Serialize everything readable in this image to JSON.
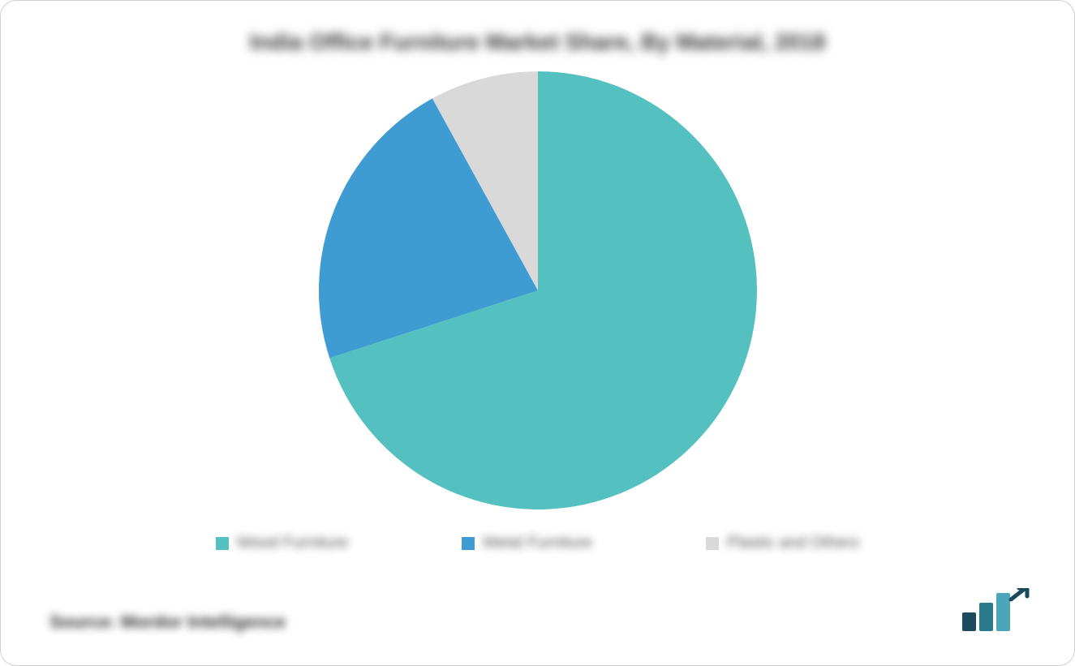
{
  "chart": {
    "type": "pie",
    "title": "India Office Furniture Market Share, By Material, 2018",
    "title_fontsize": 28,
    "title_color": "#333333",
    "background_color": "#ffffff",
    "slices": [
      {
        "label": "Wood Furniture",
        "value": 70,
        "color": "#54c0c0"
      },
      {
        "label": "Metal Furniture",
        "value": 22,
        "color": "#3e9cd2"
      },
      {
        "label": "Plastic and Others",
        "value": 8,
        "color": "#d9d9d9"
      }
    ],
    "pie_radius": 270,
    "legend_fontsize": 20,
    "legend_color": "#555555",
    "swatch_size": 16
  },
  "source_text": "Source: Mordor Intelligence",
  "source_fontsize": 22,
  "logo": {
    "bar1_color": "#1a4a5c",
    "bar2_color": "#2a7a8c",
    "bar3_color": "#4aa6b8",
    "arrow_color": "#1a4a5c"
  }
}
